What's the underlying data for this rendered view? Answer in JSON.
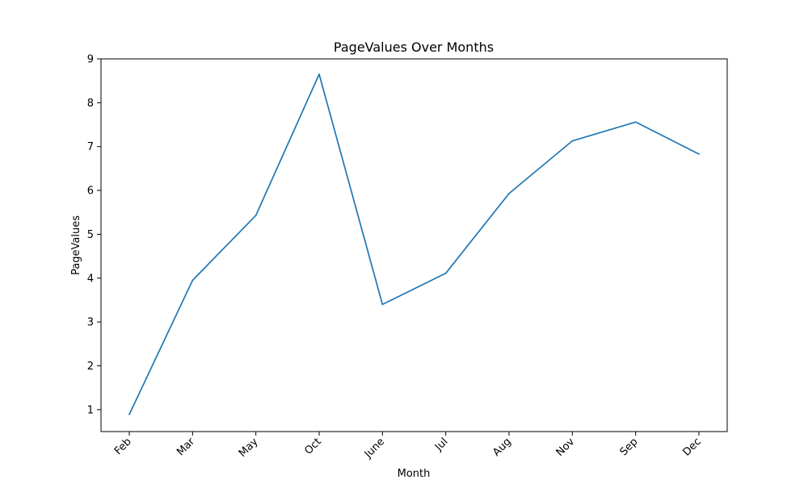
{
  "chart_data": {
    "type": "line",
    "title": "PageValues Over Months",
    "xlabel": "Month",
    "ylabel": "PageValues",
    "categories": [
      "Feb",
      "Mar",
      "May",
      "Oct",
      "June",
      "Jul",
      "Aug",
      "Nov",
      "Sep",
      "Dec"
    ],
    "series": [
      {
        "values": [
          0.89,
          3.95,
          5.43,
          8.65,
          3.4,
          4.11,
          5.93,
          7.13,
          7.56,
          6.83
        ],
        "color": "#1f77b4"
      }
    ],
    "ylim": [
      0.5,
      9.0
    ],
    "yticks": [
      1,
      2,
      3,
      4,
      5,
      6,
      7,
      8,
      9
    ],
    "grid": false,
    "legend": "none"
  }
}
